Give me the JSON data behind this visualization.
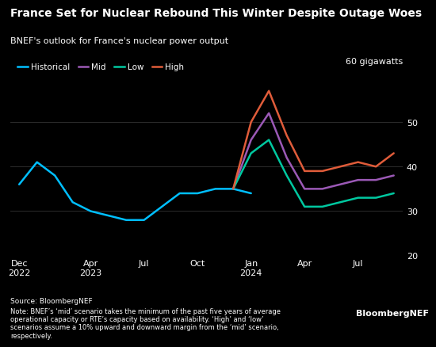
{
  "title": "France Set for Nuclear Rebound This Winter Despite Outage Woes",
  "subtitle": "BNEF's outlook for France's nuclear power output",
  "ylabel_annotation": "60 gigawatts",
  "source_text": "Source: BloombergNEF",
  "note_text": "Note: BNEF’s ‘mid’ scenario takes the minimum of the past five years of average\noperational capacity or RTE’s capacity based on availability. ‘High’ and ‘low’\nscenarios assume a 10% upward and downward margin from the ‘mid’ scenario,\nrespectively.",
  "brand_text": "BloombergNEF",
  "background_color": "#000000",
  "text_color": "#ffffff",
  "grid_color": "#333333",
  "ylim": [
    20,
    62
  ],
  "yticks": [
    20,
    30,
    40,
    50
  ],
  "x_tick_labels": [
    "Dec\n2022",
    "Apr\n2023",
    "Jul",
    "Oct",
    "Jan\n2024",
    "Apr",
    "Jul"
  ],
  "x_tick_positions": [
    0,
    4,
    7,
    10,
    13,
    16,
    19
  ],
  "series": {
    "historical": {
      "color": "#00bfff",
      "label": "Historical",
      "x": [
        0,
        1,
        2,
        3,
        4,
        5,
        6,
        7,
        8,
        9,
        10,
        11,
        12,
        13
      ],
      "y": [
        36,
        41,
        38,
        32,
        30,
        29,
        28,
        28,
        31,
        34,
        34,
        35,
        35,
        34
      ]
    },
    "mid": {
      "color": "#9b59b6",
      "label": "Mid",
      "x": [
        12,
        13,
        14,
        15,
        16,
        17,
        18,
        19,
        20,
        21
      ],
      "y": [
        35,
        46,
        52,
        42,
        35,
        35,
        36,
        37,
        37,
        38
      ]
    },
    "low": {
      "color": "#00c8a0",
      "label": "Low",
      "x": [
        12,
        13,
        14,
        15,
        16,
        17,
        18,
        19,
        20,
        21
      ],
      "y": [
        35,
        43,
        46,
        38,
        31,
        31,
        32,
        33,
        33,
        34
      ]
    },
    "high": {
      "color": "#e05c3a",
      "label": "High",
      "x": [
        12,
        13,
        14,
        15,
        16,
        17,
        18,
        19,
        20,
        21
      ],
      "y": [
        35,
        50,
        57,
        47,
        39,
        39,
        40,
        41,
        40,
        43
      ]
    }
  }
}
